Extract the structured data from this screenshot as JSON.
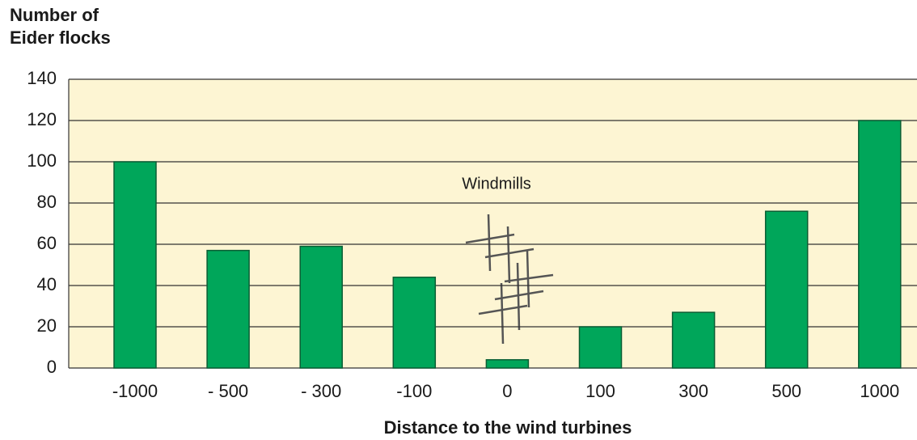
{
  "chart_data": {
    "type": "bar",
    "ylabel_lines": [
      "Number of",
      "Eider flocks"
    ],
    "xlabel": "Distance to the wind turbines",
    "annotation": "Windmills",
    "categories": [
      "-1000",
      "- 500",
      "- 300",
      "-100",
      "0",
      "100",
      "300",
      "500",
      "1000"
    ],
    "values": [
      100,
      57,
      59,
      44,
      4,
      20,
      27,
      76,
      120
    ],
    "color": "#00a65a",
    "ylim": [
      0,
      140
    ],
    "yticks": [
      0,
      20,
      40,
      60,
      80,
      100,
      120,
      140
    ],
    "grid": true
  }
}
